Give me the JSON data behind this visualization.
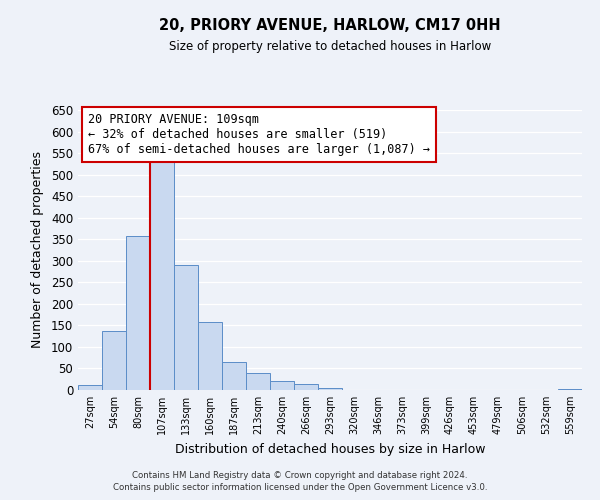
{
  "title": "20, PRIORY AVENUE, HARLOW, CM17 0HH",
  "subtitle": "Size of property relative to detached houses in Harlow",
  "xlabel": "Distribution of detached houses by size in Harlow",
  "ylabel": "Number of detached properties",
  "bin_labels": [
    "27sqm",
    "54sqm",
    "80sqm",
    "107sqm",
    "133sqm",
    "160sqm",
    "187sqm",
    "213sqm",
    "240sqm",
    "266sqm",
    "293sqm",
    "320sqm",
    "346sqm",
    "373sqm",
    "399sqm",
    "426sqm",
    "453sqm",
    "479sqm",
    "506sqm",
    "532sqm",
    "559sqm"
  ],
  "bar_values": [
    12,
    137,
    358,
    535,
    290,
    157,
    65,
    40,
    22,
    14,
    5,
    0,
    0,
    0,
    0,
    1,
    0,
    0,
    0,
    0,
    2
  ],
  "bar_color": "#c9d9f0",
  "bar_edge_color": "#5b8dc8",
  "vline_x": 3,
  "vline_color": "#cc0000",
  "annotation_line1": "20 PRIORY AVENUE: 109sqm",
  "annotation_line2": "← 32% of detached houses are smaller (519)",
  "annotation_line3": "67% of semi-detached houses are larger (1,087) →",
  "annotation_box_color": "#ffffff",
  "annotation_box_edge": "#cc0000",
  "ylim": [
    0,
    650
  ],
  "yticks": [
    0,
    50,
    100,
    150,
    200,
    250,
    300,
    350,
    400,
    450,
    500,
    550,
    600,
    650
  ],
  "footer_line1": "Contains HM Land Registry data © Crown copyright and database right 2024.",
  "footer_line2": "Contains public sector information licensed under the Open Government Licence v3.0.",
  "bg_color": "#eef2f9"
}
